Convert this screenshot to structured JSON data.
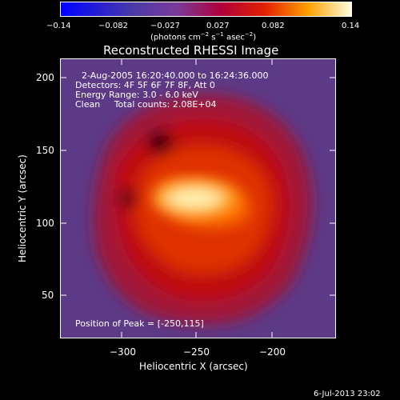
{
  "colorbar": {
    "ticks": [
      "−0.14",
      "−0.082",
      "−0.027",
      "0.027",
      "0.082",
      "0.14"
    ],
    "unit_prefix": "(photons cm",
    "unit_exp1": "−2",
    "unit_mid": " s",
    "unit_exp2": "−1",
    "unit_mid2": " asec",
    "unit_exp3": "−2",
    "unit_suffix": ")"
  },
  "chart_data": {
    "type": "heatmap",
    "title": "Reconstructed RHESSI Image",
    "xlabel": "Heliocentric X (arcsec)",
    "ylabel": "Heliocentric Y (arcsec)",
    "xlim": [
      -345,
      -145
    ],
    "ylim": [
      18,
      218
    ],
    "x_ticks": [
      -300,
      -250,
      -200
    ],
    "y_ticks": [
      50,
      100,
      150,
      200
    ],
    "x_tick_labels": [
      "−300",
      "−250",
      "−200"
    ],
    "y_tick_labels": [
      "50",
      "100",
      "150",
      "200"
    ],
    "color_range": [
      -0.14,
      0.14
    ],
    "peak": [
      -250,
      115
    ],
    "annotations": [
      "2-Aug-2005 16:20:40.000 to 16:24:36.000",
      "Detectors: 4F 5F 6F 7F 8F, Att 0",
      "Energy Range: 3.0 - 6.0 keV",
      "Clean     Total counts: 2.08E+04",
      "Position of Peak = [-250,115]"
    ]
  },
  "footer": {
    "timestamp": "6-Jul-2013 23:02"
  }
}
